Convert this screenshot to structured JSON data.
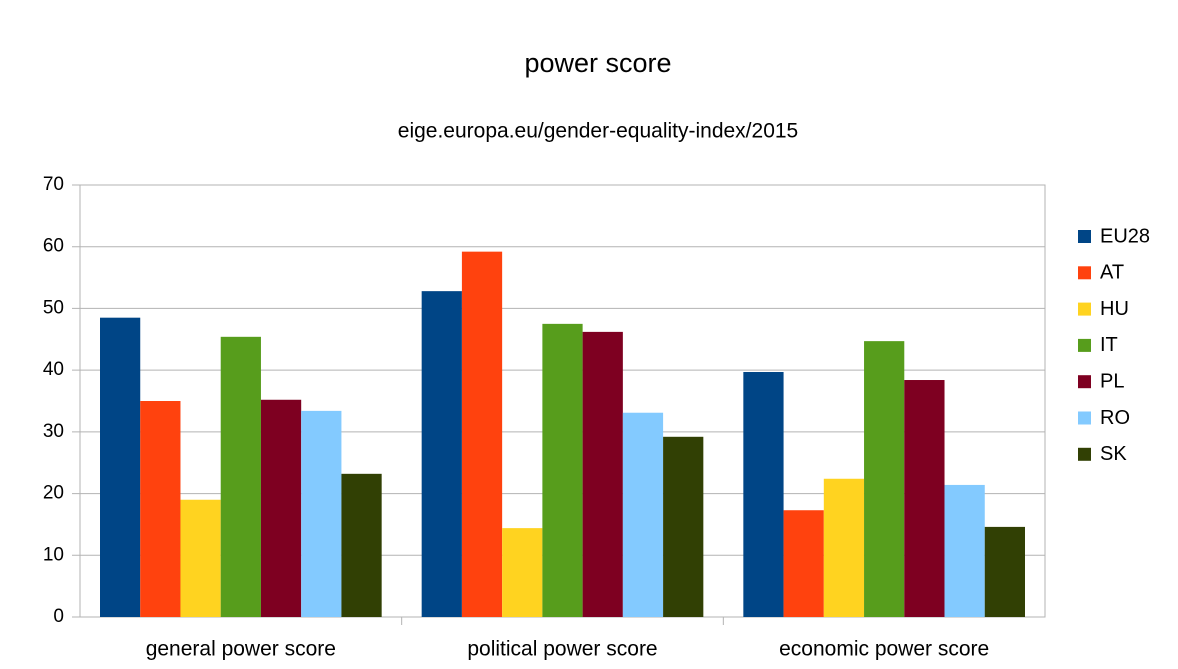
{
  "chart_data": {
    "type": "bar",
    "title": "power score",
    "subtitle": "eige.europa.eu/gender-equality-index/2015",
    "categories": [
      "general power score",
      "political power score",
      "economic power score"
    ],
    "series": [
      {
        "name": "EU28",
        "color": "#004586",
        "values": [
          48.5,
          52.8,
          39.7
        ]
      },
      {
        "name": "AT",
        "color": "#ff420e",
        "values": [
          35.0,
          59.2,
          17.3
        ]
      },
      {
        "name": "HU",
        "color": "#ffd320",
        "values": [
          19.0,
          14.4,
          22.4
        ]
      },
      {
        "name": "IT",
        "color": "#579d1c",
        "values": [
          45.4,
          47.5,
          44.7
        ]
      },
      {
        "name": "PL",
        "color": "#7e0021",
        "values": [
          35.2,
          46.2,
          38.4
        ]
      },
      {
        "name": "RO",
        "color": "#83caff",
        "values": [
          33.4,
          33.1,
          21.4
        ]
      },
      {
        "name": "SK",
        "color": "#314004",
        "values": [
          23.2,
          29.2,
          14.6
        ]
      }
    ],
    "ylim": [
      0,
      70
    ],
    "yticks": [
      0,
      10,
      20,
      30,
      40,
      50,
      60,
      70
    ],
    "grid": true,
    "legend": "right"
  }
}
